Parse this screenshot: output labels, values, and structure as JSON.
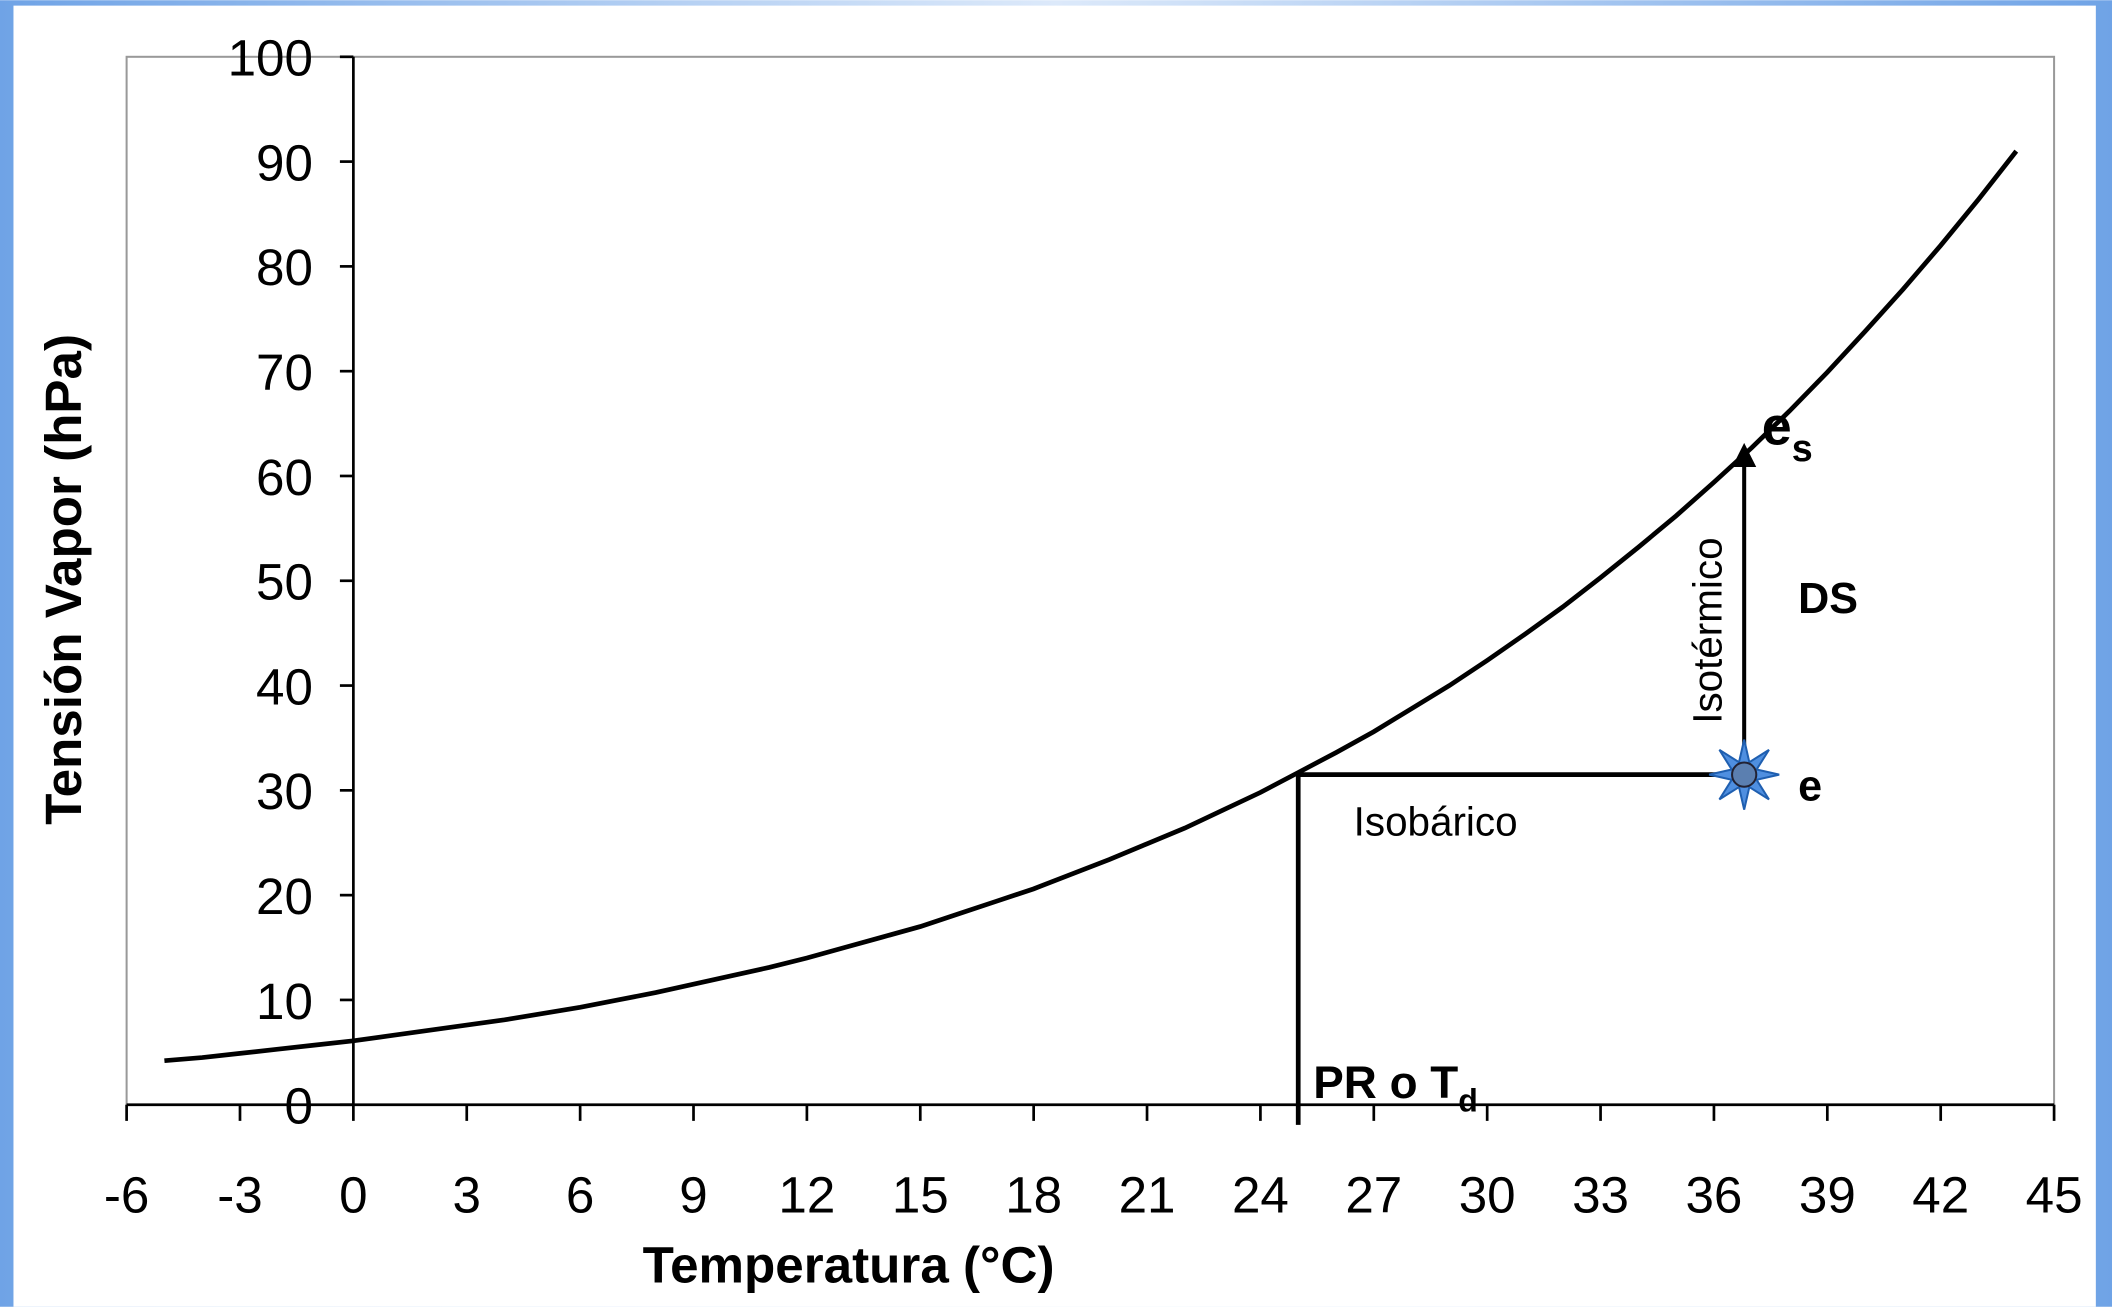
{
  "chart_data": {
    "type": "line",
    "xlabel": "Temperatura (°C)",
    "ylabel": "Tensión Vapor  (hPa)",
    "x": [
      -5,
      -4,
      -3,
      -2,
      -1,
      0,
      1,
      2,
      3,
      4,
      5,
      6,
      7,
      8,
      9,
      10,
      11,
      12,
      13,
      14,
      15,
      16,
      17,
      18,
      19,
      20,
      21,
      22,
      23,
      24,
      25,
      26,
      27,
      28,
      29,
      30,
      31,
      32,
      33,
      34,
      35,
      36,
      37,
      38,
      39,
      40,
      41,
      42,
      43,
      44
    ],
    "values": [
      4.2,
      4.5,
      4.9,
      5.3,
      5.7,
      6.1,
      6.6,
      7.1,
      7.6,
      8.1,
      8.7,
      9.3,
      10.0,
      10.7,
      11.5,
      12.3,
      13.1,
      14.0,
      15.0,
      16.0,
      17.0,
      18.2,
      19.4,
      20.6,
      22.0,
      23.4,
      24.9,
      26.4,
      28.1,
      29.8,
      31.7,
      33.6,
      35.6,
      37.8,
      40.0,
      42.4,
      44.9,
      47.5,
      50.3,
      53.2,
      56.2,
      59.4,
      62.7,
      66.2,
      69.9,
      73.8,
      77.8,
      82.0,
      86.4,
      91.0
    ],
    "color": "#000000",
    "xlim": [
      -6,
      45
    ],
    "xticks": [
      -6,
      -3,
      0,
      3,
      6,
      9,
      12,
      15,
      18,
      21,
      24,
      27,
      30,
      33,
      36,
      39,
      42,
      45
    ],
    "ylim": [
      0,
      100
    ],
    "yticks": [
      0,
      10,
      20,
      30,
      40,
      50,
      60,
      70,
      80,
      90,
      100
    ],
    "dew_point": {
      "x": 25,
      "y": 31.5
    },
    "state_point": {
      "x": 36.8,
      "y": 31.5
    },
    "saturation_point": {
      "x": 36.8,
      "y": 62
    },
    "annotations": [
      {
        "text": "e",
        "sub": "s"
      },
      {
        "text": "DS"
      },
      {
        "text": "e"
      },
      {
        "text": "Isobárico"
      },
      {
        "text": "Isotérmico"
      },
      {
        "text": "PR o T",
        "sub": "d"
      }
    ]
  }
}
